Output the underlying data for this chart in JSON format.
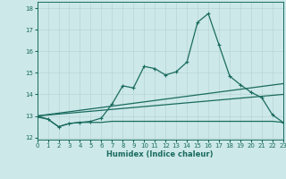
{
  "xlabel": "Humidex (Indice chaleur)",
  "xlim": [
    0,
    23
  ],
  "ylim": [
    11.9,
    18.3
  ],
  "yticks": [
    12,
    13,
    14,
    15,
    16,
    17,
    18
  ],
  "xticks": [
    0,
    1,
    2,
    3,
    4,
    5,
    6,
    7,
    8,
    9,
    10,
    11,
    12,
    13,
    14,
    15,
    16,
    17,
    18,
    19,
    20,
    21,
    22,
    23
  ],
  "bg_color": "#cce8e8",
  "line_color": "#1a6b5e",
  "grid_color": "#b8d4d4",
  "line1_x": [
    0,
    1,
    2,
    3,
    4,
    5,
    6,
    7,
    8,
    9,
    10,
    11,
    12,
    13,
    14,
    15,
    16,
    17,
    18,
    19,
    20,
    21,
    22,
    23
  ],
  "line1_y": [
    12.95,
    12.85,
    12.5,
    12.65,
    12.7,
    12.7,
    12.7,
    12.75,
    12.75,
    12.75,
    12.75,
    12.75,
    12.75,
    12.75,
    12.75,
    12.75,
    12.75,
    12.75,
    12.75,
    12.75,
    12.75,
    12.75,
    12.75,
    12.7
  ],
  "line2_x": [
    0,
    23
  ],
  "line2_y": [
    13.0,
    14.5
  ],
  "line3_x": [
    0,
    23
  ],
  "line3_y": [
    13.0,
    14.0
  ],
  "line4_x": [
    0,
    1,
    2,
    3,
    4,
    5,
    6,
    7,
    8,
    9,
    10,
    11,
    12,
    13,
    14,
    15,
    16,
    17,
    18,
    19,
    20,
    21,
    22,
    23
  ],
  "line4_y": [
    13.0,
    12.85,
    12.5,
    12.65,
    12.7,
    12.75,
    12.9,
    13.55,
    14.4,
    14.3,
    15.3,
    15.2,
    14.9,
    15.05,
    15.5,
    17.35,
    17.75,
    16.3,
    14.85,
    14.45,
    14.1,
    13.85,
    13.05,
    12.7
  ]
}
